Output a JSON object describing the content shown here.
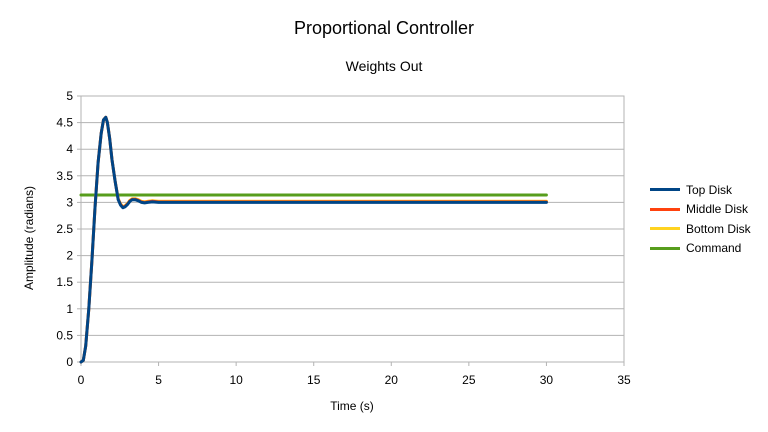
{
  "chart_data": {
    "type": "line",
    "title": "Proportional Controller",
    "subtitle": "Weights Out",
    "xlabel": "Time (s)",
    "ylabel": "Amplitude (radians)",
    "xlim": [
      0,
      35
    ],
    "ylim": [
      0,
      5
    ],
    "x_ticks": [
      "0",
      "5",
      "10",
      "15",
      "20",
      "25",
      "30",
      "35"
    ],
    "y_ticks": [
      "0",
      "0.5",
      "1",
      "1.5",
      "2",
      "2.5",
      "3",
      "3.5",
      "4",
      "4.5",
      "5"
    ],
    "grid": true,
    "legend": "right",
    "series": [
      {
        "name": "Top Disk",
        "color": "#004586",
        "x": [
          0,
          0.15,
          0.3,
          0.5,
          0.7,
          0.9,
          1.1,
          1.3,
          1.45,
          1.6,
          1.7,
          1.85,
          2.0,
          2.2,
          2.4,
          2.55,
          2.7,
          2.85,
          3.0,
          3.15,
          3.3,
          3.5,
          3.7,
          3.9,
          4.1,
          4.3,
          4.6,
          5.0,
          5.5,
          6.0,
          30
        ],
        "y": [
          0,
          0.03,
          0.3,
          1.0,
          1.9,
          2.9,
          3.75,
          4.3,
          4.55,
          4.6,
          4.5,
          4.2,
          3.8,
          3.4,
          3.05,
          2.95,
          2.9,
          2.92,
          2.96,
          3.02,
          3.05,
          3.05,
          3.03,
          3.0,
          2.99,
          3.0,
          3.01,
          3.0,
          3.0,
          3.0,
          3.0
        ]
      },
      {
        "name": "Middle Disk",
        "color": "#ff420e",
        "x": [
          0,
          0.15,
          0.3,
          0.5,
          0.7,
          0.9,
          1.1,
          1.3,
          1.45,
          1.6,
          1.7,
          1.85,
          2.0,
          2.2,
          2.4,
          2.55,
          2.7,
          2.85,
          3.0,
          3.15,
          3.3,
          3.5,
          3.7,
          3.9,
          4.1,
          4.3,
          4.6,
          5.0,
          5.5,
          6.0,
          30
        ],
        "y": [
          0,
          0.03,
          0.3,
          1.0,
          1.9,
          2.9,
          3.75,
          4.3,
          4.55,
          4.6,
          4.5,
          4.2,
          3.8,
          3.4,
          3.06,
          2.96,
          2.91,
          2.93,
          2.97,
          3.03,
          3.06,
          3.06,
          3.04,
          3.01,
          3.0,
          3.01,
          3.02,
          3.01,
          3.01,
          3.01,
          3.01
        ]
      },
      {
        "name": "Bottom Disk",
        "color": "#ffd320",
        "x": [
          0,
          0.15,
          0.3,
          0.5,
          0.7,
          0.9,
          1.1,
          1.3,
          1.45,
          1.6,
          1.7,
          1.85,
          2.0,
          2.2,
          2.4,
          2.55,
          2.7,
          2.85,
          3.0,
          3.15,
          3.3,
          3.5,
          3.7,
          3.9,
          4.1,
          4.3,
          4.6,
          5.0,
          5.5,
          6.0,
          30
        ],
        "y": [
          0,
          0.03,
          0.3,
          1.0,
          1.9,
          2.9,
          3.75,
          4.3,
          4.55,
          4.6,
          4.5,
          4.2,
          3.8,
          3.4,
          3.07,
          2.97,
          2.92,
          2.94,
          2.98,
          3.04,
          3.07,
          3.07,
          3.05,
          3.02,
          3.01,
          3.02,
          3.03,
          3.02,
          3.02,
          3.02,
          3.02
        ]
      },
      {
        "name": "Command",
        "color": "#579d1c",
        "x": [
          0,
          30
        ],
        "y": [
          3.14,
          3.14
        ]
      }
    ]
  }
}
